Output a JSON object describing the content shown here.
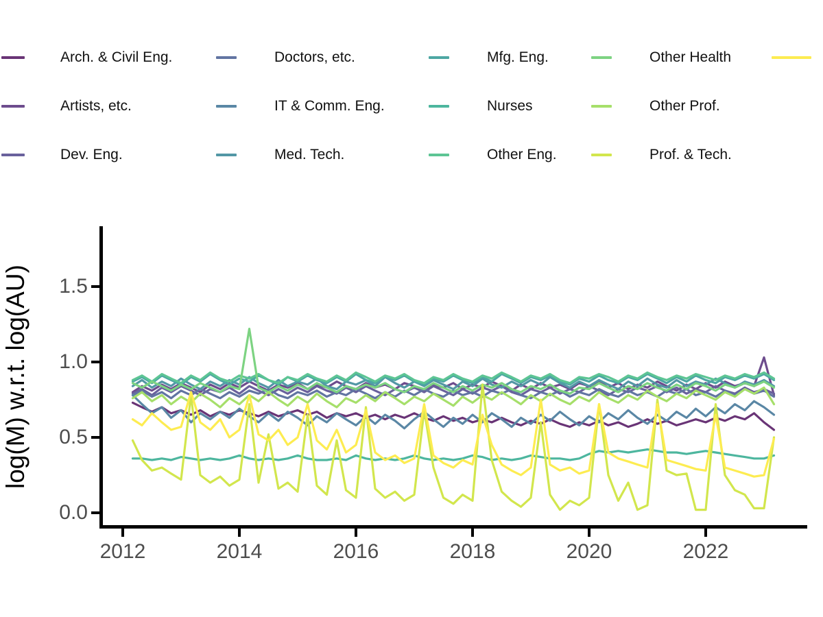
{
  "figure": {
    "y_axis_title": "log(M) w.r.t. log(AU)",
    "x_tick_labels": [
      "2012",
      "2014",
      "2016",
      "2018",
      "2020",
      "2022"
    ],
    "y_tick_labels": [
      "0.0",
      "0.5",
      "1.0",
      "1.5"
    ]
  },
  "legend": {
    "items": [
      {
        "label": "Arch. & Civil Eng.",
        "color": "#693476"
      },
      {
        "label": "Artists, etc.",
        "color": "#6d4c8d"
      },
      {
        "label": "Dev. Eng.",
        "color": "#69619c"
      },
      {
        "label": "Doctors, etc.",
        "color": "#6275a2"
      },
      {
        "label": "IT & Comm. Eng.",
        "color": "#5a87a5"
      },
      {
        "label": "Med. Tech.",
        "color": "#5397a5"
      },
      {
        "label": "Mfg. Eng.",
        "color": "#4da7a3"
      },
      {
        "label": "Nurses",
        "color": "#4db69e"
      },
      {
        "label": "Other Eng.",
        "color": "#5dc594"
      },
      {
        "label": "Other Health",
        "color": "#7dd382"
      },
      {
        "label": "Other Prof.",
        "color": "#a6df6a"
      },
      {
        "label": "Prof. & Tech.",
        "color": "#d2e64d"
      },
      {
        "label": "",
        "color": "#fdec51"
      }
    ]
  },
  "chart_data": {
    "type": "line",
    "title": "",
    "xlabel": "",
    "ylabel": "log(M) w.r.t. log(AU)",
    "xlim": [
      2011.6,
      2023.72
    ],
    "ylim": [
      -0.1,
      1.9
    ],
    "grid": false,
    "legend_position": "top",
    "x_tick_values": [
      2012,
      2014,
      2016,
      2018,
      2020,
      2022
    ],
    "y_tick_values": [
      0.0,
      0.5,
      1.0,
      1.5
    ],
    "x": [
      2012.17,
      2012.33,
      2012.5,
      2012.67,
      2012.83,
      2013,
      2013.17,
      2013.33,
      2013.5,
      2013.67,
      2013.83,
      2014,
      2014.17,
      2014.33,
      2014.5,
      2014.67,
      2014.83,
      2015,
      2015.17,
      2015.33,
      2015.5,
      2015.67,
      2015.83,
      2016,
      2016.17,
      2016.33,
      2016.5,
      2016.67,
      2016.83,
      2017,
      2017.17,
      2017.33,
      2017.5,
      2017.67,
      2017.83,
      2018,
      2018.17,
      2018.33,
      2018.5,
      2018.67,
      2018.83,
      2019,
      2019.17,
      2019.33,
      2019.5,
      2019.67,
      2019.83,
      2020,
      2020.17,
      2020.33,
      2020.5,
      2020.67,
      2020.83,
      2021,
      2021.17,
      2021.33,
      2021.5,
      2021.67,
      2021.83,
      2022,
      2022.17,
      2022.33,
      2022.5,
      2022.67,
      2022.83,
      2023,
      2023.17
    ],
    "series": [
      {
        "name": "Arch. & Civil Eng.",
        "color": "#693476",
        "values": [
          0.73,
          0.7,
          0.67,
          0.7,
          0.66,
          0.68,
          0.65,
          0.68,
          0.64,
          0.67,
          0.65,
          0.68,
          0.66,
          0.64,
          0.67,
          0.64,
          0.66,
          0.68,
          0.65,
          0.67,
          0.63,
          0.66,
          0.64,
          0.66,
          0.63,
          0.65,
          0.62,
          0.65,
          0.63,
          0.66,
          0.63,
          0.61,
          0.64,
          0.61,
          0.63,
          0.6,
          0.62,
          0.6,
          0.63,
          0.6,
          0.58,
          0.61,
          0.59,
          0.62,
          0.59,
          0.57,
          0.6,
          0.58,
          0.61,
          0.58,
          0.6,
          0.57,
          0.59,
          0.62,
          0.59,
          0.61,
          0.58,
          0.6,
          0.62,
          0.6,
          0.63,
          0.61,
          0.64,
          0.62,
          0.66,
          0.6,
          0.55
        ]
      },
      {
        "name": "Artists, etc.",
        "color": "#6d4c8d",
        "values": [
          0.8,
          0.84,
          0.81,
          0.85,
          0.82,
          0.86,
          0.83,
          0.8,
          0.85,
          0.82,
          0.86,
          0.83,
          0.87,
          0.84,
          0.81,
          0.85,
          0.83,
          0.86,
          0.82,
          0.85,
          0.83,
          0.87,
          0.84,
          0.82,
          0.86,
          0.83,
          0.85,
          0.82,
          0.86,
          0.84,
          0.81,
          0.85,
          0.83,
          0.86,
          0.82,
          0.85,
          0.83,
          0.87,
          0.84,
          0.81,
          0.85,
          0.82,
          0.86,
          0.83,
          0.85,
          0.82,
          0.86,
          0.84,
          0.87,
          0.83,
          0.86,
          0.82,
          0.85,
          0.83,
          0.87,
          0.84,
          0.81,
          0.85,
          0.82,
          0.86,
          0.83,
          0.87,
          0.84,
          0.86,
          0.84,
          1.03,
          0.78
        ]
      },
      {
        "name": "Dev. Eng.",
        "color": "#69619c",
        "values": [
          0.79,
          0.82,
          0.78,
          0.83,
          0.8,
          0.84,
          0.81,
          0.78,
          0.82,
          0.8,
          0.83,
          0.79,
          0.84,
          0.81,
          0.78,
          0.82,
          0.79,
          0.83,
          0.8,
          0.84,
          0.81,
          0.79,
          0.83,
          0.8,
          0.84,
          0.81,
          0.78,
          0.82,
          0.8,
          0.83,
          0.8,
          0.84,
          0.81,
          0.78,
          0.82,
          0.79,
          0.83,
          0.81,
          0.84,
          0.8,
          0.78,
          0.82,
          0.8,
          0.83,
          0.79,
          0.82,
          0.8,
          0.84,
          0.81,
          0.78,
          0.82,
          0.8,
          0.83,
          0.81,
          0.84,
          0.8,
          0.83,
          0.79,
          0.82,
          0.8,
          0.84,
          0.81,
          0.79,
          0.83,
          0.8,
          0.82,
          0.79
        ]
      },
      {
        "name": "Doctors, etc.",
        "color": "#6275a2",
        "values": [
          0.78,
          0.81,
          0.77,
          0.8,
          0.76,
          0.81,
          0.78,
          0.82,
          0.79,
          0.76,
          0.8,
          0.77,
          0.81,
          0.79,
          0.82,
          0.78,
          0.76,
          0.8,
          0.78,
          0.81,
          0.77,
          0.8,
          0.78,
          0.82,
          0.79,
          0.76,
          0.8,
          0.77,
          0.81,
          0.78,
          0.82,
          0.79,
          0.77,
          0.81,
          0.78,
          0.8,
          0.77,
          0.81,
          0.79,
          0.82,
          0.78,
          0.76,
          0.8,
          0.78,
          0.81,
          0.77,
          0.8,
          0.78,
          0.82,
          0.79,
          0.77,
          0.81,
          0.78,
          0.8,
          0.77,
          0.81,
          0.79,
          0.82,
          0.78,
          0.8,
          0.77,
          0.81,
          0.78,
          0.82,
          0.79,
          0.81,
          0.77
        ]
      },
      {
        "name": "IT & Comm. Eng.",
        "color": "#5a87a5",
        "values": [
          0.78,
          0.72,
          0.66,
          0.7,
          0.63,
          0.68,
          0.6,
          0.66,
          0.62,
          0.67,
          0.63,
          0.69,
          0.64,
          0.6,
          0.66,
          0.61,
          0.67,
          0.63,
          0.58,
          0.64,
          0.6,
          0.66,
          0.62,
          0.58,
          0.64,
          0.59,
          0.65,
          0.61,
          0.56,
          0.62,
          0.67,
          0.62,
          0.57,
          0.63,
          0.59,
          0.65,
          0.6,
          0.66,
          0.62,
          0.57,
          0.63,
          0.59,
          0.65,
          0.61,
          0.67,
          0.62,
          0.58,
          0.64,
          0.6,
          0.66,
          0.62,
          0.68,
          0.63,
          0.59,
          0.65,
          0.61,
          0.67,
          0.63,
          0.69,
          0.64,
          0.7,
          0.66,
          0.72,
          0.68,
          0.74,
          0.7,
          0.65
        ]
      },
      {
        "name": "Med. Tech.",
        "color": "#5397a5",
        "values": [
          0.84,
          0.88,
          0.83,
          0.87,
          0.84,
          0.89,
          0.85,
          0.82,
          0.87,
          0.84,
          0.88,
          0.85,
          0.9,
          0.86,
          0.83,
          0.88,
          0.84,
          0.87,
          0.85,
          0.89,
          0.84,
          0.82,
          0.87,
          0.85,
          0.88,
          0.84,
          0.9,
          0.86,
          0.83,
          0.87,
          0.84,
          0.88,
          0.85,
          0.82,
          0.87,
          0.84,
          0.89,
          0.85,
          0.83,
          0.87,
          0.84,
          0.88,
          0.85,
          0.9,
          0.86,
          0.83,
          0.87,
          0.84,
          0.88,
          0.85,
          0.82,
          0.87,
          0.84,
          0.89,
          0.85,
          0.83,
          0.88,
          0.84,
          0.87,
          0.85,
          0.89,
          0.86,
          0.83,
          0.87,
          0.85,
          0.88,
          0.84
        ]
      },
      {
        "name": "Mfg. Eng.",
        "color": "#4da7a3",
        "values": [
          0.87,
          0.9,
          0.86,
          0.91,
          0.88,
          0.85,
          0.9,
          0.87,
          0.92,
          0.88,
          0.85,
          0.89,
          0.87,
          0.91,
          0.88,
          0.85,
          0.9,
          0.87,
          0.91,
          0.88,
          0.86,
          0.9,
          0.87,
          0.92,
          0.88,
          0.86,
          0.9,
          0.88,
          0.91,
          0.87,
          0.85,
          0.89,
          0.87,
          0.91,
          0.88,
          0.86,
          0.9,
          0.87,
          0.92,
          0.89,
          0.86,
          0.9,
          0.88,
          0.91,
          0.87,
          0.85,
          0.89,
          0.87,
          0.91,
          0.88,
          0.86,
          0.9,
          0.88,
          0.92,
          0.89,
          0.86,
          0.9,
          0.87,
          0.91,
          0.88,
          0.86,
          0.9,
          0.88,
          0.91,
          0.89,
          0.92,
          0.88
        ]
      },
      {
        "name": "Nurses",
        "color": "#4db69e",
        "values": [
          0.36,
          0.36,
          0.35,
          0.36,
          0.35,
          0.37,
          0.36,
          0.35,
          0.36,
          0.35,
          0.36,
          0.38,
          0.36,
          0.35,
          0.36,
          0.35,
          0.36,
          0.38,
          0.36,
          0.35,
          0.35,
          0.36,
          0.35,
          0.38,
          0.36,
          0.35,
          0.36,
          0.35,
          0.36,
          0.38,
          0.36,
          0.35,
          0.36,
          0.35,
          0.36,
          0.38,
          0.37,
          0.35,
          0.36,
          0.35,
          0.36,
          0.38,
          0.37,
          0.36,
          0.36,
          0.35,
          0.36,
          0.39,
          0.41,
          0.4,
          0.41,
          0.4,
          0.41,
          0.42,
          0.41,
          0.4,
          0.4,
          0.39,
          0.4,
          0.41,
          0.4,
          0.39,
          0.38,
          0.37,
          0.36,
          0.36,
          0.38
        ]
      },
      {
        "name": "Other Eng.",
        "color": "#5dc594",
        "values": [
          0.88,
          0.91,
          0.87,
          0.92,
          0.89,
          0.86,
          0.91,
          0.88,
          0.93,
          0.89,
          0.87,
          0.91,
          0.89,
          0.92,
          0.88,
          0.86,
          0.9,
          0.88,
          0.92,
          0.89,
          0.87,
          0.91,
          0.88,
          0.93,
          0.9,
          0.87,
          0.91,
          0.89,
          0.92,
          0.88,
          0.86,
          0.9,
          0.88,
          0.92,
          0.89,
          0.87,
          0.91,
          0.89,
          0.93,
          0.9,
          0.87,
          0.91,
          0.89,
          0.92,
          0.88,
          0.86,
          0.9,
          0.89,
          0.92,
          0.9,
          0.87,
          0.91,
          0.89,
          0.93,
          0.9,
          0.88,
          0.91,
          0.89,
          0.92,
          0.9,
          0.88,
          0.91,
          0.89,
          0.92,
          0.9,
          0.93,
          0.89
        ]
      },
      {
        "name": "Other Health",
        "color": "#7dd382",
        "values": [
          0.86,
          0.83,
          0.87,
          0.84,
          0.81,
          0.85,
          0.82,
          0.86,
          0.83,
          0.8,
          0.84,
          0.82,
          1.22,
          0.83,
          0.8,
          0.84,
          0.81,
          0.85,
          0.82,
          0.86,
          0.83,
          0.8,
          0.84,
          0.82,
          0.85,
          0.83,
          0.86,
          0.82,
          0.8,
          0.84,
          0.82,
          0.86,
          0.83,
          0.8,
          0.84,
          0.81,
          0.85,
          0.83,
          0.86,
          0.82,
          0.8,
          0.84,
          0.82,
          0.85,
          0.81,
          0.79,
          0.83,
          0.82,
          0.86,
          0.83,
          0.8,
          0.84,
          0.82,
          0.86,
          0.83,
          0.81,
          0.85,
          0.82,
          0.86,
          0.84,
          0.81,
          0.85,
          0.83,
          0.86,
          0.84,
          0.87,
          0.83
        ]
      },
      {
        "name": "Other Prof.",
        "color": "#a6df6a",
        "values": [
          0.76,
          0.8,
          0.74,
          0.78,
          0.72,
          0.77,
          0.73,
          0.79,
          0.75,
          0.7,
          0.76,
          0.72,
          0.78,
          0.74,
          0.8,
          0.75,
          0.71,
          0.77,
          0.73,
          0.79,
          0.74,
          0.7,
          0.76,
          0.73,
          0.78,
          0.74,
          0.8,
          0.76,
          0.72,
          0.77,
          0.74,
          0.79,
          0.75,
          0.71,
          0.77,
          0.73,
          0.78,
          0.75,
          0.8,
          0.76,
          0.72,
          0.78,
          0.74,
          0.79,
          0.75,
          0.72,
          0.77,
          0.74,
          0.8,
          0.76,
          0.73,
          0.78,
          0.75,
          0.81,
          0.77,
          0.74,
          0.79,
          0.76,
          0.81,
          0.78,
          0.75,
          0.8,
          0.77,
          0.82,
          0.79,
          0.83,
          0.72
        ]
      },
      {
        "name": "Prof. & Tech.",
        "color": "#d2e64d",
        "values": [
          0.48,
          0.35,
          0.28,
          0.3,
          0.26,
          0.22,
          0.78,
          0.25,
          0.2,
          0.24,
          0.18,
          0.22,
          0.72,
          0.2,
          0.52,
          0.16,
          0.2,
          0.14,
          0.65,
          0.18,
          0.12,
          0.48,
          0.15,
          0.1,
          0.7,
          0.16,
          0.1,
          0.14,
          0.08,
          0.12,
          0.68,
          0.3,
          0.1,
          0.06,
          0.12,
          0.08,
          0.85,
          0.35,
          0.14,
          0.08,
          0.04,
          0.1,
          0.6,
          0.12,
          0.02,
          0.08,
          0.05,
          0.1,
          0.72,
          0.25,
          0.08,
          0.2,
          0.02,
          0.05,
          0.75,
          0.28,
          0.25,
          0.26,
          0.02,
          0.02,
          0.72,
          0.25,
          0.15,
          0.12,
          0.03,
          0.03,
          0.5
        ]
      },
      {
        "name": "",
        "color": "#fdec51",
        "values": [
          0.62,
          0.58,
          0.66,
          0.6,
          0.55,
          0.57,
          0.8,
          0.6,
          0.55,
          0.62,
          0.5,
          0.55,
          0.78,
          0.52,
          0.48,
          0.55,
          0.45,
          0.5,
          0.72,
          0.48,
          0.42,
          0.55,
          0.4,
          0.45,
          0.68,
          0.4,
          0.35,
          0.38,
          0.33,
          0.36,
          0.72,
          0.38,
          0.33,
          0.3,
          0.35,
          0.32,
          0.65,
          0.45,
          0.32,
          0.28,
          0.25,
          0.3,
          0.75,
          0.32,
          0.28,
          0.3,
          0.26,
          0.28,
          0.72,
          0.4,
          0.36,
          0.34,
          0.32,
          0.3,
          0.72,
          0.35,
          0.33,
          0.31,
          0.29,
          0.28,
          0.65,
          0.3,
          0.28,
          0.26,
          0.24,
          0.25,
          0.49
        ]
      }
    ]
  }
}
